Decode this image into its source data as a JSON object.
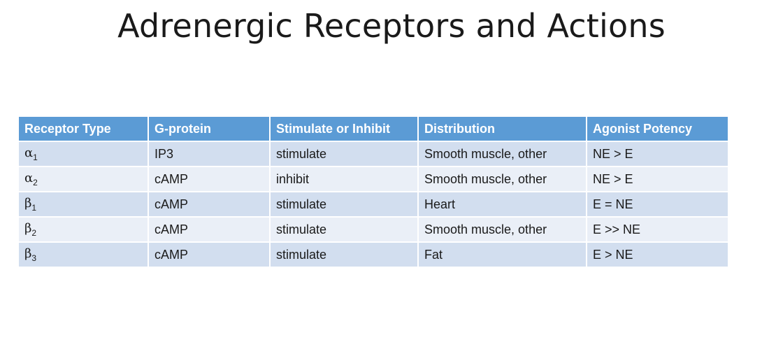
{
  "title": "Adrenergic Receptors and Actions",
  "table": {
    "headers": [
      "Receptor Type",
      "G-protein",
      "Stimulate or Inhibit",
      "Distribution",
      "Agonist Potency"
    ],
    "rows": [
      {
        "symbol": "α",
        "subscript": "1",
        "g_protein": "IP3",
        "effect": "stimulate",
        "distribution": "Smooth muscle, other",
        "potency": "NE > E"
      },
      {
        "symbol": "α",
        "subscript": "2",
        "g_protein": "cAMP",
        "effect": "inhibit",
        "distribution": "Smooth muscle, other",
        "potency": "NE > E"
      },
      {
        "symbol": "β",
        "subscript": "1",
        "g_protein": "cAMP",
        "effect": "stimulate",
        "distribution": "Heart",
        "potency": "E = NE"
      },
      {
        "symbol": "β",
        "subscript": "2",
        "g_protein": "cAMP",
        "effect": "stimulate",
        "distribution": "Smooth muscle, other",
        "potency": "E >> NE"
      },
      {
        "symbol": "β",
        "subscript": "3",
        "g_protein": "cAMP",
        "effect": "stimulate",
        "distribution": "Fat",
        "potency": "E > NE"
      }
    ]
  },
  "colors": {
    "header_bg": "#5b9bd5",
    "row_dark": "#d2deef",
    "row_light": "#eaeff7"
  }
}
